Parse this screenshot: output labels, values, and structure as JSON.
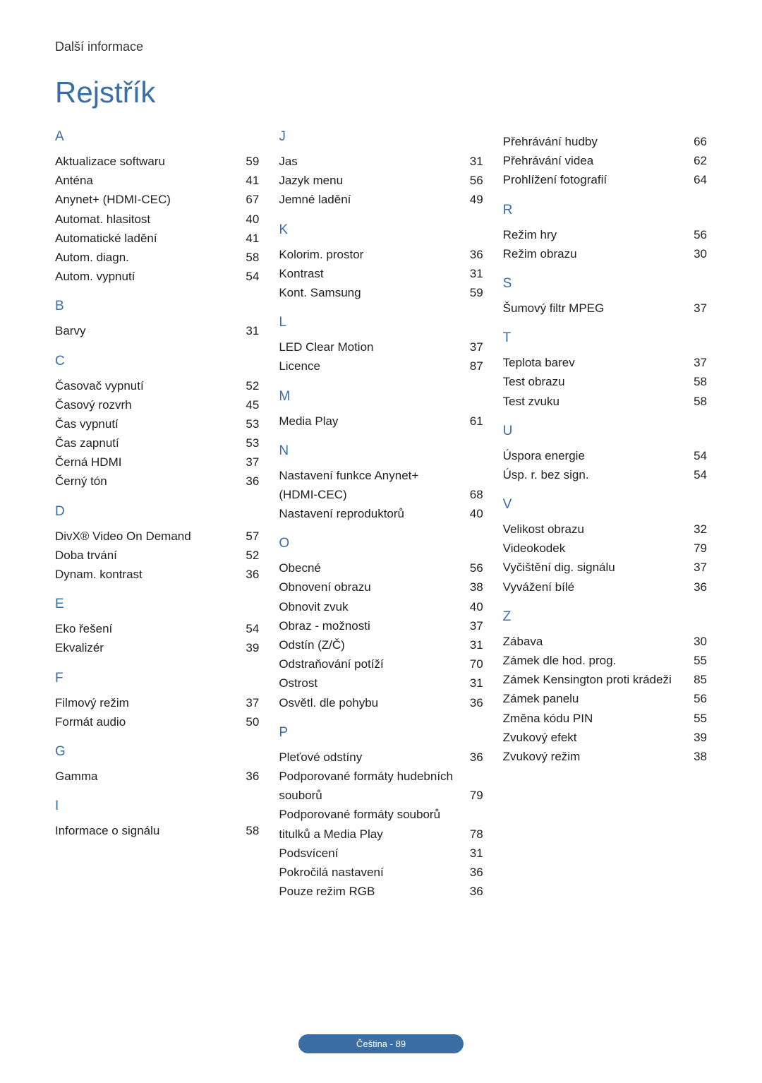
{
  "breadcrumb": "Další informace",
  "title": "Rejstřík",
  "footer": "Čeština - 89",
  "text_color": "#222222",
  "accent_color": "#3a6ea5",
  "background_color": "#ffffff",
  "font_size_body": 17,
  "font_size_title": 42,
  "font_size_letter": 19,
  "columns": [
    [
      {
        "letter": "A",
        "entries": [
          {
            "label": "Aktualizace softwaru",
            "page": "59"
          },
          {
            "label": "Anténa",
            "page": "41"
          },
          {
            "label": "Anynet+ (HDMI-CEC)",
            "page": "67"
          },
          {
            "label": "Automat. hlasitost",
            "page": "40"
          },
          {
            "label": "Automatické ladění",
            "page": "41"
          },
          {
            "label": "Autom. diagn.",
            "page": "58"
          },
          {
            "label": "Autom. vypnutí",
            "page": "54"
          }
        ]
      },
      {
        "letter": "B",
        "entries": [
          {
            "label": "Barvy",
            "page": "31"
          }
        ]
      },
      {
        "letter": "C",
        "entries": [
          {
            "label": "Časovač vypnutí",
            "page": "52"
          },
          {
            "label": "Časový rozvrh",
            "page": "45"
          },
          {
            "label": "Čas vypnutí",
            "page": "53"
          },
          {
            "label": "Čas zapnutí",
            "page": "53"
          },
          {
            "label": "Černá HDMI",
            "page": "37"
          },
          {
            "label": "Černý tón",
            "page": "36"
          }
        ]
      },
      {
        "letter": "D",
        "entries": [
          {
            "label": "DivX® Video On Demand",
            "page": "57"
          },
          {
            "label": "Doba trvání",
            "page": "52"
          },
          {
            "label": "Dynam. kontrast",
            "page": "36"
          }
        ]
      },
      {
        "letter": "E",
        "entries": [
          {
            "label": "Eko řešení",
            "page": "54"
          },
          {
            "label": "Ekvalizér",
            "page": "39"
          }
        ]
      },
      {
        "letter": "F",
        "entries": [
          {
            "label": "Filmový režim",
            "page": "37"
          },
          {
            "label": "Formát audio",
            "page": "50"
          }
        ]
      },
      {
        "letter": "G",
        "entries": [
          {
            "label": "Gamma",
            "page": "36"
          }
        ]
      },
      {
        "letter": "I",
        "entries": [
          {
            "label": "Informace o signálu",
            "page": "58"
          }
        ]
      }
    ],
    [
      {
        "letter": "J",
        "entries": [
          {
            "label": "Jas",
            "page": "31"
          },
          {
            "label": "Jazyk menu",
            "page": "56"
          },
          {
            "label": "Jemné ladění",
            "page": "49"
          }
        ]
      },
      {
        "letter": "K",
        "entries": [
          {
            "label": "Kolorim. prostor",
            "page": "36"
          },
          {
            "label": "Kontrast",
            "page": "31"
          },
          {
            "label": "Kont. Samsung",
            "page": "59"
          }
        ]
      },
      {
        "letter": "L",
        "entries": [
          {
            "label": "LED Clear Motion",
            "page": "37"
          },
          {
            "label": "Licence",
            "page": "87"
          }
        ]
      },
      {
        "letter": "M",
        "entries": [
          {
            "label": "Media Play",
            "page": "61"
          }
        ]
      },
      {
        "letter": "N",
        "entries": [
          {
            "label": "Nastavení funkce Anynet+ (HDMI-CEC)",
            "page": "68"
          },
          {
            "label": "Nastavení reproduktorů",
            "page": "40"
          }
        ]
      },
      {
        "letter": "O",
        "entries": [
          {
            "label": "Obecné",
            "page": "56"
          },
          {
            "label": "Obnovení obrazu",
            "page": "38"
          },
          {
            "label": "Obnovit zvuk",
            "page": "40"
          },
          {
            "label": "Obraz - možnosti",
            "page": "37"
          },
          {
            "label": "Odstín (Z/Č)",
            "page": "31"
          },
          {
            "label": "Odstraňování potíží",
            "page": "70"
          },
          {
            "label": "Ostrost",
            "page": "31"
          },
          {
            "label": "Osvětl. dle pohybu",
            "page": "36"
          }
        ]
      },
      {
        "letter": "P",
        "entries": [
          {
            "label": "Pleťové odstíny",
            "page": "36"
          },
          {
            "label": "Podporované formáty hudebních souborů",
            "page": "79"
          },
          {
            "label": "Podporované formáty souborů titulků a Media Play",
            "page": "78"
          },
          {
            "label": "Podsvícení",
            "page": "31"
          },
          {
            "label": "Pokročilá nastavení",
            "page": "36"
          },
          {
            "label": "Pouze režim RGB",
            "page": "36"
          }
        ]
      }
    ],
    [
      {
        "letter": "",
        "entries": [
          {
            "label": "Přehrávání hudby",
            "page": "66"
          },
          {
            "label": "Přehrávání videa",
            "page": "62"
          },
          {
            "label": "Prohlížení fotografií",
            "page": "64"
          }
        ]
      },
      {
        "letter": "R",
        "entries": [
          {
            "label": "Režim hry",
            "page": "56"
          },
          {
            "label": "Režim obrazu",
            "page": "30"
          }
        ]
      },
      {
        "letter": "S",
        "entries": [
          {
            "label": "Šumový filtr MPEG",
            "page": "37"
          }
        ]
      },
      {
        "letter": "T",
        "entries": [
          {
            "label": "Teplota barev",
            "page": "37"
          },
          {
            "label": "Test obrazu",
            "page": "58"
          },
          {
            "label": "Test zvuku",
            "page": "58"
          }
        ]
      },
      {
        "letter": "U",
        "entries": [
          {
            "label": "Úspora energie",
            "page": "54"
          },
          {
            "label": "Úsp. r. bez sign.",
            "page": "54"
          }
        ]
      },
      {
        "letter": "V",
        "entries": [
          {
            "label": "Velikost obrazu",
            "page": "32"
          },
          {
            "label": "Videokodek",
            "page": "79"
          },
          {
            "label": "Vyčištění dig. signálu",
            "page": "37"
          },
          {
            "label": "Vyvážení bílé",
            "page": "36"
          }
        ]
      },
      {
        "letter": "Z",
        "entries": [
          {
            "label": "Zábava",
            "page": "30"
          },
          {
            "label": "Zámek dle hod. prog.",
            "page": "55"
          },
          {
            "label": "Zámek Kensington proti krádeži",
            "page": "85"
          },
          {
            "label": "Zámek panelu",
            "page": "56"
          },
          {
            "label": "Změna kódu PIN",
            "page": "55"
          },
          {
            "label": "Zvukový efekt",
            "page": "39"
          },
          {
            "label": "Zvukový režim",
            "page": "38"
          }
        ]
      }
    ]
  ]
}
